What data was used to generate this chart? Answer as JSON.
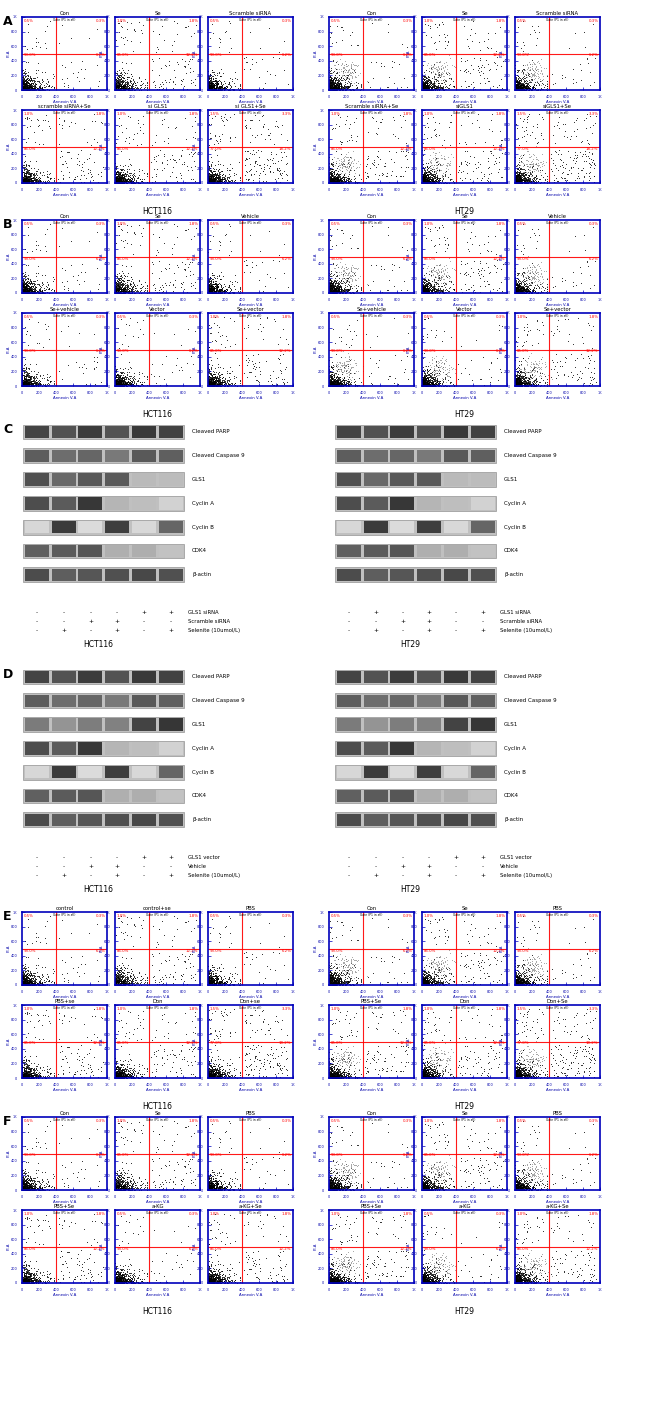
{
  "panel_A_row1_labels": [
    "Con",
    "Se",
    "Scramble siRNA",
    "Con",
    "Se",
    "Scramble siRNA"
  ],
  "panel_A_row2_labels": [
    "scramble siRNA+Se",
    "si GLS1",
    "si GLS1+Se",
    "Scramble siRNA+Se",
    "siGLS1",
    "siGLS1+Se"
  ],
  "panel_B_row1_labels": [
    "Con",
    "Se",
    "Vehicle",
    "Con",
    "Se",
    "Vehicle"
  ],
  "panel_B_row2_labels": [
    "Se+vehicle",
    "Vector",
    "Se+vector",
    "Se+vehicle",
    "Vector",
    "Se+vector"
  ],
  "panel_C_proteins": [
    "Cleaved PARP",
    "Cleaved Caspase 9",
    "GLS1",
    "Cyclin A",
    "Cyclin B",
    "CDK4",
    "β-actin"
  ],
  "panel_C_labels": [
    "GLS1 siRNA",
    "Scramble siRNA",
    "Selenite (10umol/L)"
  ],
  "panel_C_signs_L": [
    [
      "-",
      "-",
      "-",
      "-",
      "+",
      "+"
    ],
    [
      "-",
      "-",
      "+",
      "+",
      "-",
      "-"
    ],
    [
      "-",
      "+",
      "-",
      "+",
      "-",
      "+"
    ]
  ],
  "panel_C_signs_R": [
    [
      "-",
      "+",
      "-",
      "+",
      "-",
      "+"
    ],
    [
      "-",
      "-",
      "+",
      "+",
      "-",
      "-"
    ],
    [
      "-",
      "+",
      "-",
      "+",
      "-",
      "+"
    ]
  ],
  "panel_D_proteins": [
    "Cleaved PARP",
    "Cleaved Caspase 9",
    "GLS1",
    "Cyclin A",
    "Cyclin B",
    "CDK4",
    "β-actin"
  ],
  "panel_D_labels": [
    "GLS1 vector",
    "Vehicle",
    "Selenite (10umol/L)"
  ],
  "panel_D_signs": [
    [
      "-",
      "-",
      "-",
      "-",
      "+",
      "+"
    ],
    [
      "-",
      "-",
      "+",
      "+",
      "-",
      "-"
    ],
    [
      "-",
      "+",
      "-",
      "+",
      "-",
      "+"
    ]
  ],
  "panel_E_row1_labels": [
    "control",
    "control+se",
    "PBS",
    "Con",
    "Se",
    "PBS"
  ],
  "panel_E_row2_labels": [
    "PBS+se",
    "Don",
    "Don+se",
    "PBS+Se",
    "Don",
    "Don+Se"
  ],
  "panel_F_row1_labels": [
    "Con",
    "Se",
    "PBS",
    "Con",
    "Se",
    "PBS"
  ],
  "panel_F_row2_labels": [
    "PBS+Se",
    "a-KG",
    "a-KG+Se",
    "PBS+Se",
    "a-KG",
    "a-KG+Se"
  ]
}
